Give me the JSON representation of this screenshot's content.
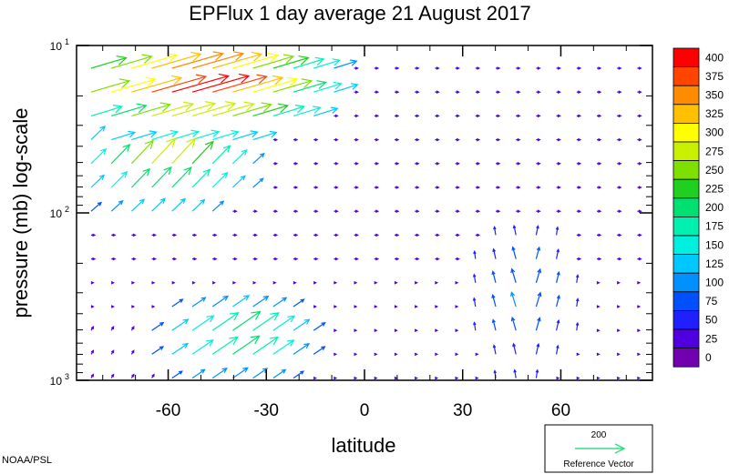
{
  "chart_data": {
    "type": "vector-field",
    "title": "EPFlux  1 day average  21 August    2017",
    "xlabel": "latitude",
    "ylabel": "pressure (mb)  log-scale",
    "xlim": [
      -88,
      88
    ],
    "ylim": [
      1000,
      10
    ],
    "y_scale": "log",
    "x_ticks": [
      -60,
      -30,
      0,
      30,
      60
    ],
    "x_tick_labels": [
      "-60",
      "-30",
      "0",
      "30",
      "60"
    ],
    "y_ticks": [
      {
        "value": 10,
        "base": "10",
        "exp": "1"
      },
      {
        "value": 100,
        "base": "10",
        "exp": "2"
      },
      {
        "value": 1000,
        "base": "10",
        "exp": "3"
      }
    ],
    "colorbar": {
      "levels": [
        "400",
        "375",
        "350",
        "325",
        "300",
        "275",
        "250",
        "225",
        "200",
        "175",
        "150",
        "125",
        "100",
        "75",
        "50",
        "25",
        "0"
      ],
      "colors": [
        "#ff0000",
        "#ff4500",
        "#ff8c00",
        "#ffc000",
        "#ffff00",
        "#c8f000",
        "#7fe000",
        "#20d020",
        "#00e070",
        "#00f0b0",
        "#00f0e0",
        "#00c8ff",
        "#0090ff",
        "#0050ff",
        "#2020ff",
        "#5000e0",
        "#7000b0"
      ]
    },
    "reference_vector": {
      "value": "200",
      "label": "Reference Vector"
    },
    "vectors_summary": [
      {
        "region": "high-latitude south upper levels",
        "lat_range": [
          -80,
          -20
        ],
        "p_range": [
          15,
          35
        ],
        "magnitude": 400,
        "direction": "equatorward-upward"
      },
      {
        "region": "southern mid-troposphere",
        "lat_range": [
          -75,
          -35
        ],
        "p_range": [
          35,
          70
        ],
        "magnitude": 250,
        "direction": "upward-equatorward"
      },
      {
        "region": "southern lower troposphere",
        "lat_range": [
          -65,
          -30
        ],
        "p_range": [
          300,
          900
        ],
        "magnitude": 200,
        "direction": "upward-equatorward"
      },
      {
        "region": "northern mid-latitude divergence",
        "lat_range": [
          35,
          60
        ],
        "p_range": [
          200,
          900
        ],
        "magnitude": 75,
        "direction": "upward"
      }
    ]
  },
  "credit": "NOAA/PSL"
}
